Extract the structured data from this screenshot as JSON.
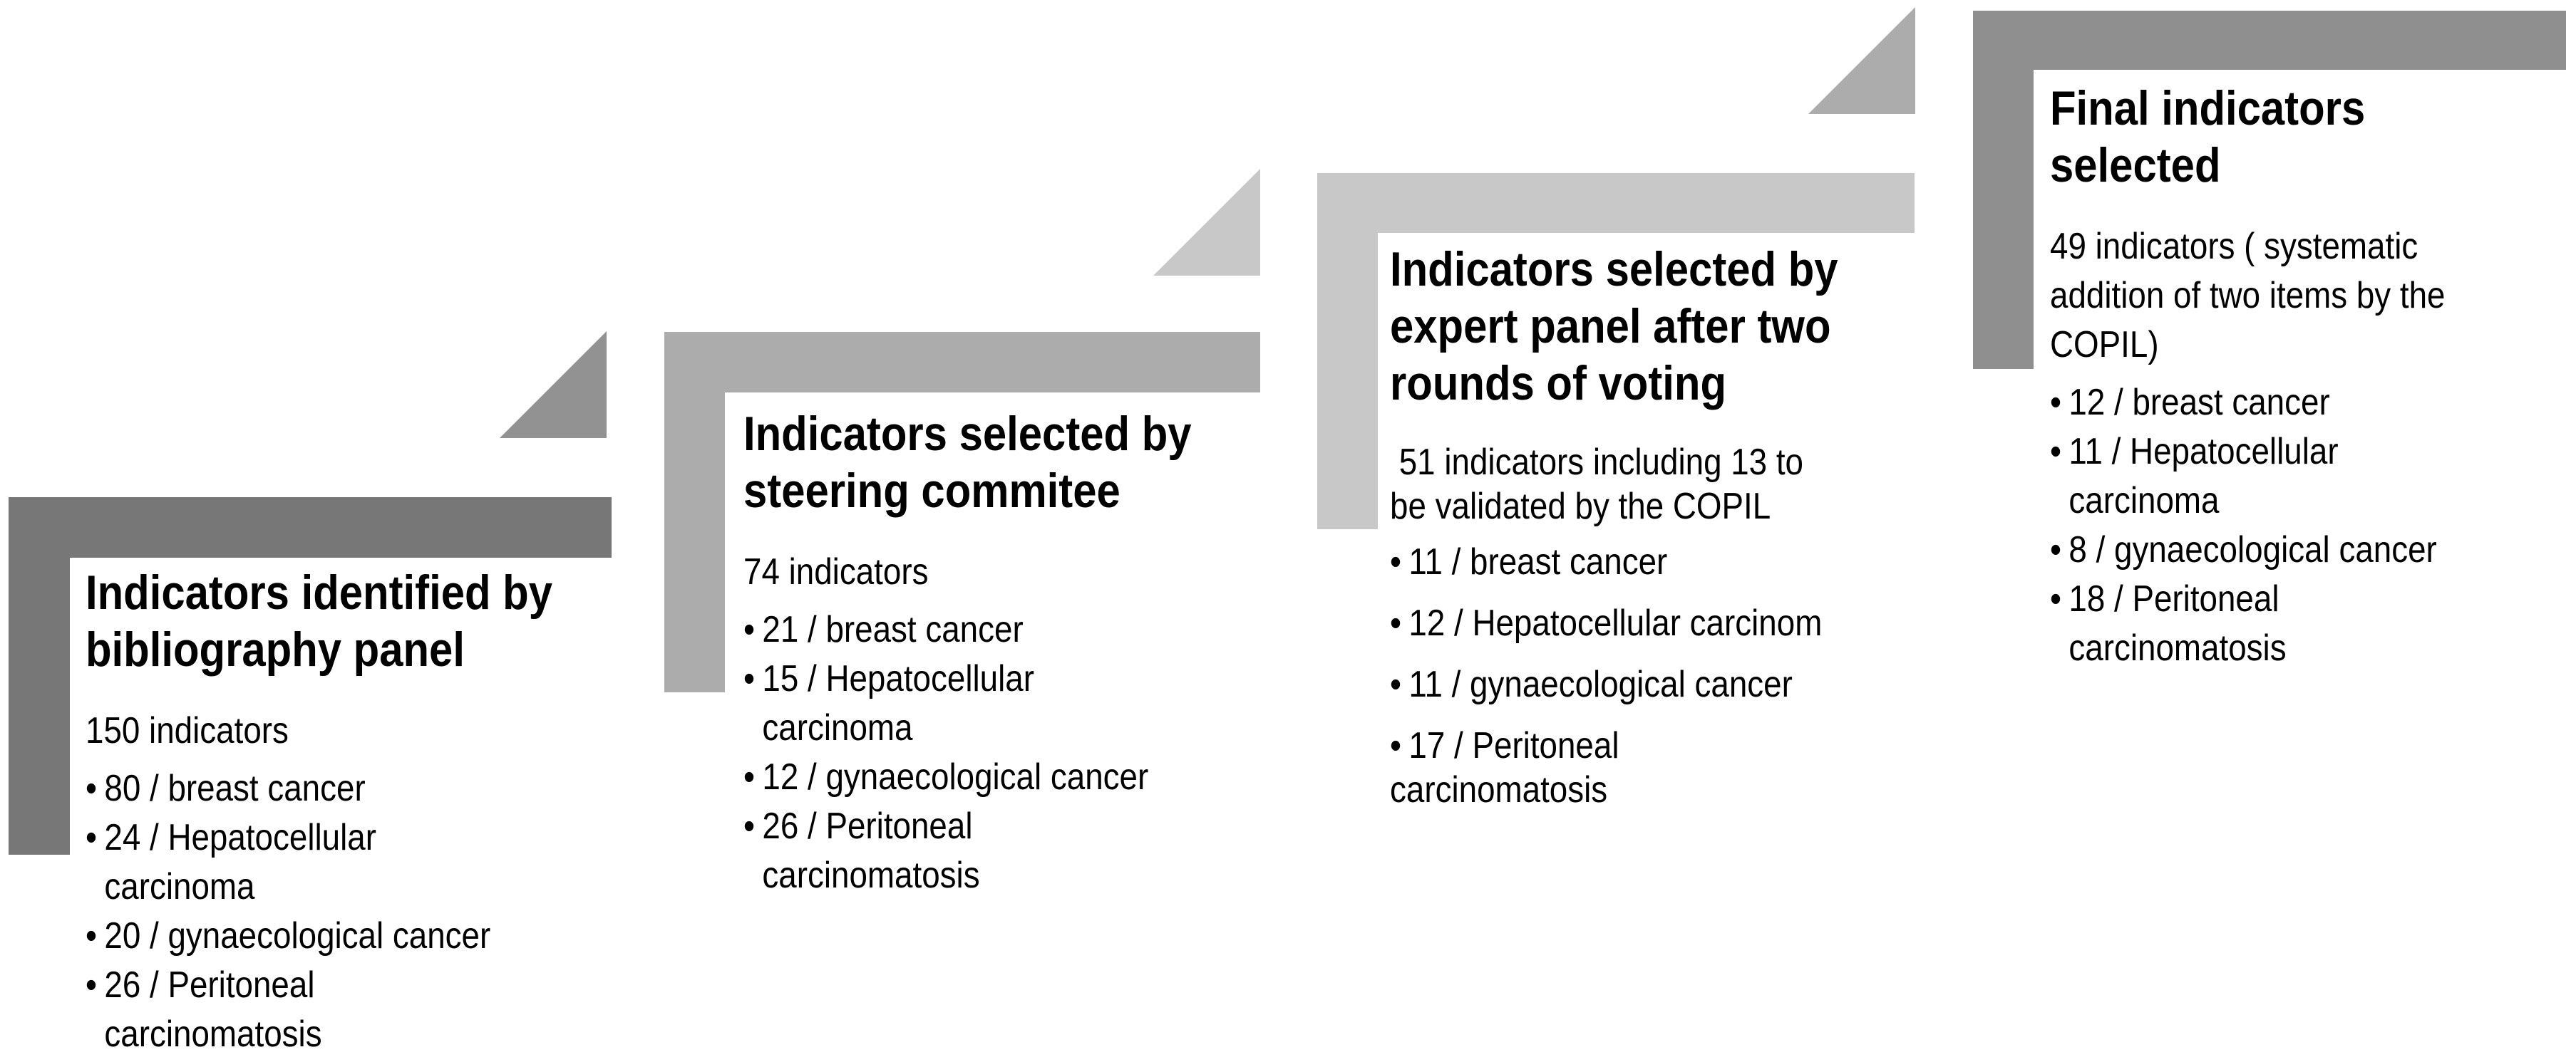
{
  "background": "#FFFFFF",
  "text_color": "#000000",
  "bullet_glyph": "•",
  "steps": [
    {
      "title": "Indicators identified by\nbibliography panel",
      "subtitle": "150 indicators",
      "bullets": [
        "80 / breast cancer",
        "24 / Hepatocellular\ncarcinoma",
        "20 / gynaecological cancer",
        "26 / Peritoneal\ncarcinomatosis"
      ],
      "bar_color": "#777777"
    },
    {
      "title": "Indicators selected by\nsteering commitee",
      "subtitle": "74 indicators",
      "bullets": [
        "21 / breast cancer",
        "15 / Hepatocellular\ncarcinoma",
        "12 / gynaecological cancer",
        "26 / Peritoneal\ncarcinomatosis"
      ],
      "bar_color": "#ACACAC"
    },
    {
      "title": "Indicators selected by\nexpert panel after two\nrounds of voting",
      "subtitle": " 51 indicators including 13 to\nbe validated by the COPIL",
      "bullets": [
        "11 / breast cancer",
        "12 / Hepatocellular carcinom",
        "11 / gynaecological cancer",
        "17 / Peritoneal\ncarcinomatosis"
      ],
      "bar_color": "#C8C8C8"
    },
    {
      "title": "Final indicators\nselected",
      "subtitle": "49 indicators ( systematic\naddition of two items by the\nCOPIL)",
      "bullets": [
        "12 / breast cancer",
        "11 / Hepatocellular\ncarcinoma",
        "8 / gynaecological cancer",
        "18 / Peritoneal\ncarcinomatosis"
      ],
      "bar_color": "#8F8F8F"
    }
  ],
  "triangles": [
    {
      "color": "#929292"
    },
    {
      "color": "#C8C8C8"
    },
    {
      "color": "#ACACAC"
    }
  ]
}
